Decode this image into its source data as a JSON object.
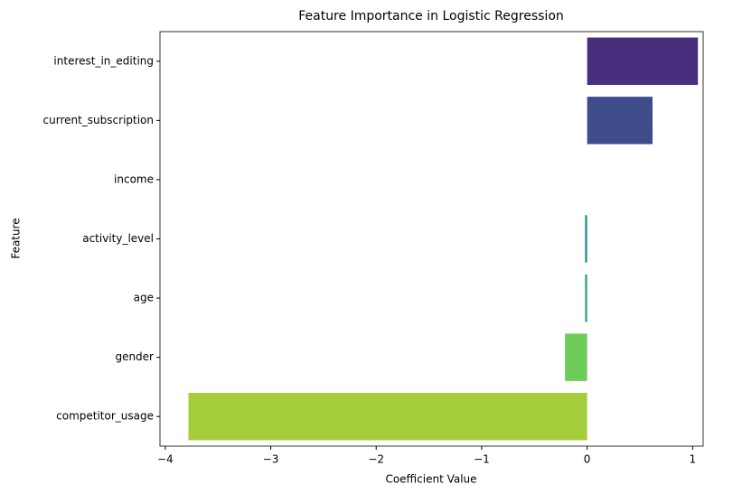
{
  "chart_data": {
    "type": "barh",
    "title": "Feature Importance in Logistic Regression",
    "xlabel": "Coefficient Value",
    "ylabel": "Feature",
    "categories": [
      "interest_in_editing",
      "current_subscription",
      "income",
      "activity_level",
      "age",
      "gender",
      "competitor_usage"
    ],
    "values": [
      1.05,
      0.62,
      0.0,
      -0.02,
      -0.02,
      -0.21,
      -3.78
    ],
    "colors": [
      "#472f7d",
      "#3e4c8a",
      "#2f6c8e",
      "#22908c",
      "#2fa37e",
      "#6ccd5a",
      "#a5cd3a"
    ],
    "xlim": [
      -4.05,
      1.1
    ],
    "xticks": [
      {
        "value": -4,
        "label": "−4"
      },
      {
        "value": -3,
        "label": "−3"
      },
      {
        "value": -2,
        "label": "−2"
      },
      {
        "value": -1,
        "label": "−1"
      },
      0,
      1
    ],
    "grid": false
  }
}
